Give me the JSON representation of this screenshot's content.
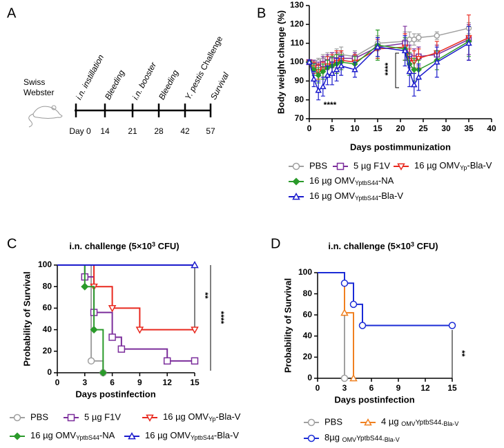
{
  "timeline": {
    "panel": "A",
    "strain": [
      "Swiss",
      "Webster"
    ],
    "days": [
      "Day 0",
      "14",
      "21",
      "28",
      "42",
      "57"
    ],
    "events": [
      [
        "i.n. instillation"
      ],
      [
        "Bleeding"
      ],
      [
        "i.n. booster"
      ],
      [
        "Bleeding"
      ],
      [
        "Y. pestis",
        " Challenge"
      ],
      [
        "Survival"
      ]
    ]
  },
  "chart_data": [
    {
      "type": "line",
      "panel": "B",
      "xlabel": "Days postimmunization",
      "ylabel": "Body weight change (%)",
      "xlim": [
        0,
        40
      ],
      "xticks": [
        0,
        5,
        10,
        15,
        20,
        25,
        30,
        35,
        40
      ],
      "ylim": [
        70,
        130
      ],
      "yticks": [
        70,
        80,
        90,
        100,
        110,
        120,
        130
      ],
      "x": [
        0,
        1,
        2,
        3,
        4,
        5,
        6,
        7,
        10,
        15,
        21,
        22,
        23,
        24,
        28,
        35
      ],
      "annotations": [
        "****",
        "****"
      ],
      "series": [
        {
          "name": "PBS",
          "color": "#a0a0a0",
          "marker": "circle",
          "values": [
            100,
            99,
            100,
            101,
            102,
            102,
            103,
            104,
            103,
            110,
            111,
            112,
            112,
            113,
            114,
            118
          ],
          "errors": [
            1,
            2,
            2,
            3,
            3,
            3,
            4,
            4,
            3,
            4,
            5,
            4,
            3,
            2,
            2,
            3
          ]
        },
        {
          "name": "5 µg F1V",
          "color": "#7b2d9b",
          "marker": "square",
          "values": [
            100,
            98,
            97,
            99,
            100,
            101,
            101,
            102,
            102,
            108,
            110,
            103,
            102,
            103,
            104,
            112
          ],
          "errors": [
            1,
            3,
            3,
            4,
            4,
            4,
            4,
            4,
            3,
            5,
            9,
            6,
            5,
            5,
            5,
            8
          ]
        },
        {
          "name": [
            "16 µg OMV",
            "Yp",
            "-Bla-V"
          ],
          "color": "#e8281e",
          "marker": "tri-down",
          "values": [
            100,
            97,
            95,
            96,
            98,
            99,
            100,
            101,
            100,
            107,
            108,
            101,
            100,
            102,
            105,
            113
          ],
          "errors": [
            1,
            3,
            4,
            4,
            5,
            5,
            6,
            5,
            4,
            5,
            7,
            6,
            6,
            5,
            6,
            12
          ]
        },
        {
          "name": [
            "16 µg OMV",
            "YptbS44",
            "-NA"
          ],
          "color": "#2a9a2a",
          "marker": "diamond",
          "filled": true,
          "values": [
            100,
            96,
            93,
            95,
            97,
            98,
            99,
            100,
            99,
            109,
            107,
            99,
            96,
            96,
            101,
            111
          ],
          "errors": [
            1,
            3,
            4,
            4,
            4,
            5,
            5,
            4,
            4,
            8,
            6,
            6,
            6,
            5,
            5,
            8
          ]
        },
        {
          "name": [
            "16 µg OMV",
            "YptbS44",
            "-Bla-V"
          ],
          "color": "#1a1acc",
          "marker": "tri-up",
          "values": [
            100,
            91,
            85,
            87,
            93,
            94,
            96,
            98,
            96,
            108,
            106,
            95,
            88,
            92,
            100,
            110
          ],
          "errors": [
            1,
            4,
            5,
            5,
            5,
            6,
            6,
            5,
            4,
            5,
            8,
            8,
            6,
            7,
            8,
            9
          ]
        }
      ]
    },
    {
      "type": "survival",
      "panel": "C",
      "title": [
        "i.n. challenge (5×10",
        "3",
        " CFU)"
      ],
      "xlabel": "Days postinfection",
      "ylabel": "Probability of Survival",
      "xlim": [
        0,
        15
      ],
      "xticks": [
        0,
        3,
        6,
        9,
        12,
        15
      ],
      "ylim": [
        0,
        100
      ],
      "yticks": [
        0,
        20,
        40,
        60,
        80,
        100
      ],
      "annotations": [
        "**",
        "****"
      ],
      "series": [
        {
          "name": "PBS",
          "color": "#a0a0a0",
          "marker": "circle",
          "x": [
            0,
            3.7,
            5
          ],
          "values": [
            100,
            11,
            0
          ]
        },
        {
          "name": "5 µg F1V",
          "color": "#7b2d9b",
          "marker": "square",
          "x": [
            0,
            3,
            4,
            6,
            7,
            12,
            15
          ],
          "values": [
            100,
            89,
            56,
            33,
            22,
            11,
            11
          ]
        },
        {
          "name": [
            "16 µg OMV",
            "Yp",
            "-Bla-V"
          ],
          "color": "#e8281e",
          "marker": "tri-down",
          "x": [
            0,
            4,
            6,
            9,
            15
          ],
          "values": [
            100,
            80,
            60,
            40,
            40
          ]
        },
        {
          "name": [
            "16 µg OMV",
            "YptbS44",
            "-NA"
          ],
          "color": "#2a9a2a",
          "marker": "diamond",
          "filled": true,
          "x": [
            0,
            3,
            4,
            5
          ],
          "values": [
            100,
            80,
            40,
            0
          ]
        },
        {
          "name": [
            "16 µg OMV",
            "YptbS44",
            "-Bla-V"
          ],
          "color": "#1a1acc",
          "marker": "tri-up",
          "x": [
            0,
            15
          ],
          "values": [
            100,
            100
          ]
        }
      ]
    },
    {
      "type": "survival",
      "panel": "D",
      "title": [
        "i.n. challenge (5×10",
        "3",
        " CFU)"
      ],
      "xlabel": "Days postinfection",
      "ylabel": "Probability of Survival",
      "xlim": [
        0,
        15
      ],
      "xticks": [
        0,
        3,
        6,
        9,
        12,
        15
      ],
      "ylim": [
        0,
        100
      ],
      "yticks": [
        0,
        20,
        40,
        60,
        80,
        100
      ],
      "annotations": [
        "**"
      ],
      "series": [
        {
          "name": "PBS",
          "color": "#a0a0a0",
          "marker": "circle",
          "x": [
            0,
            3
          ],
          "values": [
            100,
            0
          ]
        },
        {
          "name": [
            "4 µg ",
            "OMV",
            "YptbS44",
            "-Bla-V"
          ],
          "color": "#f08020",
          "marker": "tri-up",
          "x": [
            0,
            3,
            4
          ],
          "values": [
            100,
            62,
            0
          ]
        },
        {
          "name": [
            "8µg ",
            "OMV",
            "YptbS44",
            "-Bla-V"
          ],
          "color": "#1a2bd6",
          "marker": "circle",
          "x": [
            0,
            3,
            4,
            5,
            15
          ],
          "values": [
            100,
            90,
            70,
            50,
            50
          ]
        }
      ]
    }
  ]
}
